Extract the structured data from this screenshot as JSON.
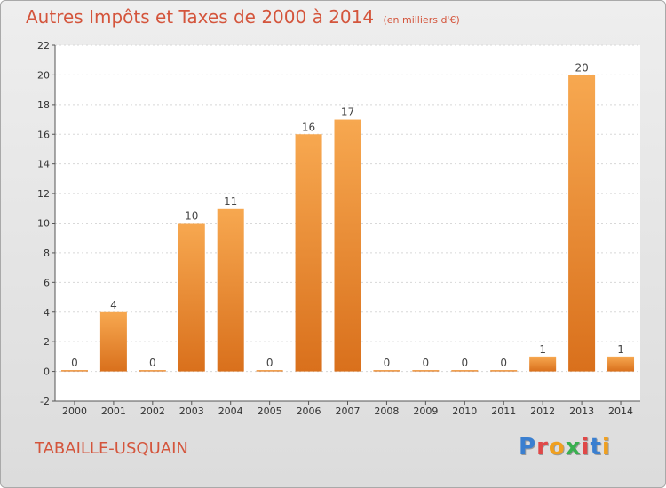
{
  "title": "Autres Impôts et Taxes de 2000 à 2014",
  "subtitle": "(en milliers d'€)",
  "commune": "TABAILLE-USQUAIN",
  "logo": {
    "letters": [
      "P",
      "r",
      "o",
      "x",
      "i",
      "t",
      "i"
    ],
    "colors": [
      "#3a7fd0",
      "#e04848",
      "#f0a020",
      "#3ab050",
      "#e04848",
      "#3a7fd0",
      "#f0a020"
    ]
  },
  "chart_data": {
    "type": "bar",
    "categories": [
      "2000",
      "2001",
      "2002",
      "2003",
      "2004",
      "2005",
      "2006",
      "2007",
      "2008",
      "2009",
      "2010",
      "2011",
      "2012",
      "2013",
      "2014"
    ],
    "values": [
      0,
      4,
      0,
      10,
      11,
      0,
      16,
      17,
      0,
      0,
      0,
      0,
      1,
      20,
      1
    ],
    "data_labels": [
      "0",
      "4",
      "0",
      "10",
      "11",
      "0",
      "16",
      "17",
      "0",
      "0",
      "0",
      "0",
      "1",
      "20",
      "1"
    ],
    "ylim": [
      -2,
      22
    ],
    "yticks": [
      -2,
      0,
      2,
      4,
      6,
      8,
      10,
      12,
      14,
      16,
      18,
      20,
      22
    ],
    "ytick_labels": [
      "-2",
      "0",
      "2",
      "4",
      "6",
      "8",
      "10",
      "12",
      "14",
      "16",
      "18",
      "20",
      "22"
    ],
    "bar_color": "#f0922e",
    "grid": true
  }
}
